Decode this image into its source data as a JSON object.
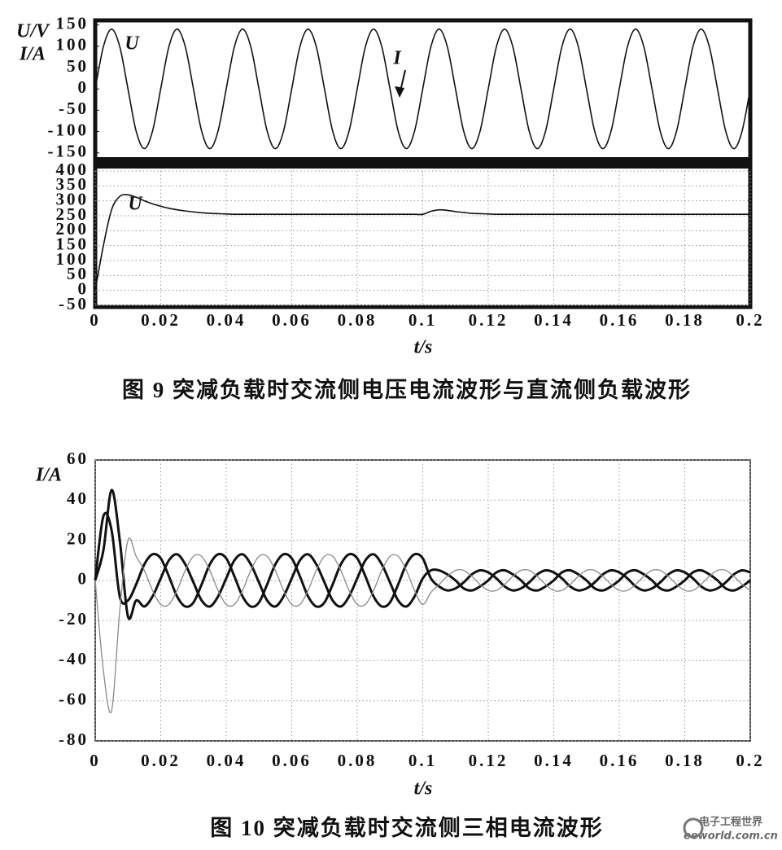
{
  "chart_data": [
    {
      "type": "line",
      "ylabel_lines": [
        "U/V",
        "I/A"
      ],
      "annotations": [
        "U",
        "I"
      ],
      "xlim": [
        0,
        0.2
      ],
      "ylim": [
        -160,
        155
      ],
      "yticks": [
        150,
        100,
        50,
        0,
        -50,
        -100,
        -150
      ],
      "grid": false,
      "x": [
        0,
        0.0025,
        0.005,
        0.0075,
        0.01,
        0.0125,
        0.015,
        0.0175,
        0.02,
        0.0225,
        0.025,
        0.0275,
        0.03,
        0.0325,
        0.035,
        0.0375,
        0.04,
        0.0425,
        0.045,
        0.0475,
        0.05,
        0.0525,
        0.055,
        0.0575,
        0.06,
        0.0625,
        0.065,
        0.0675,
        0.07,
        0.0725,
        0.075,
        0.0775,
        0.08,
        0.0825,
        0.085,
        0.0875,
        0.09,
        0.0925,
        0.095,
        0.0975,
        0.1,
        0.1025,
        0.105,
        0.1075,
        0.11,
        0.1125,
        0.115,
        0.1175,
        0.12,
        0.1225,
        0.125,
        0.1275,
        0.13,
        0.1325,
        0.135,
        0.1375,
        0.14,
        0.1425,
        0.145,
        0.1475,
        0.15,
        0.1525,
        0.155,
        0.1575,
        0.16,
        0.1625,
        0.165,
        0.1675,
        0.17,
        0.1725,
        0.175,
        0.1775,
        0.18,
        0.1825,
        0.185,
        0.1875,
        0.19,
        0.1925,
        0.195,
        0.1975,
        0.2
      ],
      "series": [
        {
          "color": "#111111",
          "linewidth": 1.6,
          "values": [
            0,
            99,
            140,
            99,
            0,
            -99,
            -140,
            -99,
            0,
            99,
            140,
            99,
            0,
            -99,
            -140,
            -99,
            0,
            99,
            140,
            99,
            0,
            -99,
            -140,
            -99,
            0,
            99,
            140,
            99,
            0,
            -99,
            -140,
            -99,
            0,
            99,
            140,
            99,
            0,
            -99,
            -140,
            -99,
            0,
            99,
            140,
            99,
            0,
            -99,
            -140,
            -99,
            0,
            99,
            140,
            99,
            0,
            -99,
            -140,
            -99,
            0,
            99,
            140,
            99,
            0,
            -99,
            -140,
            -99,
            0,
            99,
            140,
            99,
            0,
            -99,
            -140,
            -99,
            0,
            99,
            140,
            99,
            0,
            -99,
            -140,
            -99,
            0
          ]
        }
      ]
    },
    {
      "type": "line",
      "annotations": [
        "U"
      ],
      "xlabel": "t/s",
      "xlim": [
        0,
        0.2
      ],
      "xticks": [
        0,
        0.02,
        0.04,
        0.06,
        0.08,
        0.1,
        0.12,
        0.14,
        0.16,
        0.18,
        0.2
      ],
      "ylim": [
        -50,
        400
      ],
      "yticks": [
        400,
        350,
        300,
        250,
        200,
        150,
        100,
        50,
        0,
        -50
      ],
      "grid": true,
      "x": [
        0,
        0.0025,
        0.005,
        0.0075,
        0.01,
        0.0125,
        0.015,
        0.0175,
        0.02,
        0.0225,
        0.025,
        0.0275,
        0.03,
        0.0325,
        0.035,
        0.0375,
        0.04,
        0.0425,
        0.045,
        0.0475,
        0.05,
        0.0525,
        0.055,
        0.0575,
        0.06,
        0.0625,
        0.065,
        0.0675,
        0.07,
        0.0725,
        0.075,
        0.0775,
        0.08,
        0.0825,
        0.085,
        0.0875,
        0.09,
        0.0925,
        0.095,
        0.0975,
        0.1,
        0.1025,
        0.105,
        0.1075,
        0.11,
        0.1125,
        0.115,
        0.1175,
        0.12,
        0.1225,
        0.125,
        0.1275,
        0.13,
        0.1325,
        0.135,
        0.1375,
        0.14,
        0.1425,
        0.145,
        0.1475,
        0.15,
        0.1525,
        0.155,
        0.1575,
        0.16,
        0.1625,
        0.165,
        0.1675,
        0.17,
        0.1725,
        0.175,
        0.1775,
        0.18,
        0.1825,
        0.185,
        0.1875,
        0.19,
        0.1925,
        0.195,
        0.1975,
        0.2
      ],
      "series": [
        {
          "color": "#111111",
          "linewidth": 1.6,
          "values": [
            0,
            150,
            270,
            315,
            320,
            312,
            300,
            290,
            282,
            275,
            270,
            266,
            263,
            260,
            258,
            257,
            256,
            255,
            255,
            255,
            255,
            255,
            255,
            255,
            255,
            255,
            255,
            255,
            255,
            255,
            255,
            255,
            255,
            255,
            255,
            255,
            255,
            255,
            255,
            255,
            255,
            265,
            270,
            268,
            264,
            261,
            258,
            257,
            256,
            255,
            255,
            255,
            255,
            255,
            255,
            255,
            255,
            255,
            255,
            255,
            255,
            255,
            255,
            255,
            255,
            255,
            255,
            255,
            255,
            255,
            255,
            255,
            255,
            255,
            255,
            255,
            255,
            255,
            255,
            255,
            255
          ]
        }
      ]
    },
    {
      "type": "line",
      "ylabel_lines": [
        "I/A"
      ],
      "xlabel": "t/s",
      "xlim": [
        0,
        0.2
      ],
      "xticks": [
        0,
        0.02,
        0.04,
        0.06,
        0.08,
        0.1,
        0.12,
        0.14,
        0.16,
        0.18,
        0.2
      ],
      "ylim": [
        -80,
        60
      ],
      "yticks": [
        60,
        40,
        20,
        0,
        -20,
        -40,
        -60,
        -80
      ],
      "grid": true,
      "x": [
        0,
        0.0025,
        0.005,
        0.0075,
        0.01,
        0.0125,
        0.015,
        0.0175,
        0.02,
        0.0225,
        0.025,
        0.0275,
        0.03,
        0.0325,
        0.035,
        0.0375,
        0.04,
        0.0425,
        0.045,
        0.0475,
        0.05,
        0.0525,
        0.055,
        0.0575,
        0.06,
        0.0625,
        0.065,
        0.0675,
        0.07,
        0.0725,
        0.075,
        0.0775,
        0.08,
        0.0825,
        0.085,
        0.0875,
        0.09,
        0.0925,
        0.095,
        0.0975,
        0.1,
        0.1025,
        0.105,
        0.1075,
        0.11,
        0.1125,
        0.115,
        0.1175,
        0.12,
        0.1225,
        0.125,
        0.1275,
        0.13,
        0.1325,
        0.135,
        0.1375,
        0.14,
        0.1425,
        0.145,
        0.1475,
        0.15,
        0.1525,
        0.155,
        0.1575,
        0.16,
        0.1625,
        0.165,
        0.1675,
        0.17,
        0.1725,
        0.175,
        0.1775,
        0.18,
        0.1825,
        0.185,
        0.1875,
        0.19,
        0.1925,
        0.195,
        0.1975,
        0.2
      ],
      "series": [
        {
          "color": "#111111",
          "linewidth": 3,
          "values": [
            0,
            15,
            45,
            20,
            -18,
            -10,
            -13,
            -8,
            1,
            10,
            13,
            8,
            -1,
            -10,
            -13,
            -8,
            1,
            10,
            13,
            8,
            -1,
            -10,
            -13,
            -8,
            1,
            10,
            13,
            8,
            -1,
            -10,
            -13,
            -8,
            1,
            10,
            13,
            8,
            -1,
            -10,
            -13,
            -8,
            1,
            5,
            5,
            3,
            0,
            -4,
            -5,
            -3,
            0,
            4,
            5,
            3,
            0,
            -4,
            -5,
            -3,
            0,
            4,
            5,
            3,
            0,
            -4,
            -5,
            -3,
            0,
            4,
            5,
            3,
            0,
            -4,
            -5,
            -3,
            0,
            4,
            5,
            3,
            0,
            -4,
            -5,
            -3,
            0
          ]
        },
        {
          "color": "#111111",
          "linewidth": 3,
          "values": [
            0,
            32,
            25,
            -8,
            -10,
            -2,
            8,
            13,
            11,
            2,
            -8,
            -13,
            -11,
            -2,
            8,
            13,
            11,
            2,
            -8,
            -13,
            -11,
            -2,
            8,
            13,
            11,
            2,
            -8,
            -13,
            -11,
            -2,
            8,
            13,
            11,
            2,
            -8,
            -13,
            -11,
            -2,
            8,
            13,
            11,
            1,
            -3,
            -5,
            -4,
            -1,
            3,
            5,
            4,
            1,
            -3,
            -5,
            -4,
            -1,
            3,
            5,
            4,
            1,
            -3,
            -5,
            -4,
            -1,
            3,
            5,
            4,
            1,
            -3,
            -5,
            -4,
            -1,
            3,
            5,
            4,
            1,
            -3,
            -5,
            -4,
            -1,
            3,
            5,
            4
          ]
        },
        {
          "color": "#8a8a8a",
          "linewidth": 1.3,
          "values": [
            0,
            -45,
            -65,
            -15,
            20,
            12,
            5,
            -5,
            -12,
            -12,
            -5,
            5,
            12,
            12,
            5,
            -5,
            -12,
            -12,
            -5,
            5,
            12,
            12,
            5,
            -5,
            -12,
            -12,
            -5,
            5,
            12,
            12,
            5,
            -5,
            -12,
            -12,
            -5,
            5,
            12,
            12,
            5,
            -5,
            -12,
            -6,
            -2,
            2,
            5,
            5,
            2,
            -2,
            -5,
            -5,
            -2,
            2,
            5,
            5,
            2,
            -2,
            -5,
            -5,
            -2,
            2,
            5,
            5,
            2,
            -2,
            -5,
            -5,
            -2,
            2,
            5,
            5,
            2,
            -2,
            -5,
            -5,
            -2,
            2,
            5,
            5,
            2,
            -2,
            -5
          ]
        }
      ]
    }
  ],
  "captions": [
    "图 9  突减负载时交流侧电压电流波形与直流侧负载波形",
    "图 10  突减负载时交流侧三相电流波形"
  ],
  "watermark": {
    "title": "电子工程世界",
    "url": "eeworld.com.cn"
  }
}
